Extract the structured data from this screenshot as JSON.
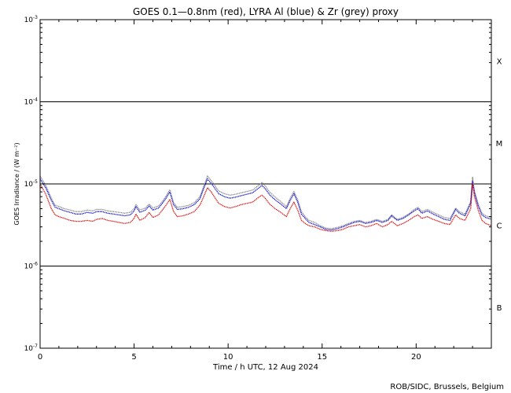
{
  "chart_data": {
    "type": "line",
    "title": "GOES 0.1—0.8nm (red), LYRA Al (blue) & Zr (grey) proxy",
    "xlabel": "Time / h UTC, 12 Aug 2024",
    "ylabel": "GOES Irradiance / (W m⁻²)",
    "credit": "ROB/SIDC, Brussels, Belgium",
    "xlim": [
      0,
      24
    ],
    "ylim": [
      1e-07,
      0.001
    ],
    "yscale": "log",
    "x_ticks": [
      0,
      5,
      10,
      15,
      20
    ],
    "x_tick_labels": [
      "0",
      "5",
      "10",
      "15",
      "20"
    ],
    "y_ticks": [
      {
        "value": 0.001,
        "base": "10",
        "exp": "-3"
      },
      {
        "value": 0.0001,
        "base": "10",
        "exp": "-4"
      },
      {
        "value": 1e-05,
        "base": "10",
        "exp": "-5"
      },
      {
        "value": 1e-06,
        "base": "10",
        "exp": "-6"
      },
      {
        "value": 1e-07,
        "base": "10",
        "exp": "-7"
      }
    ],
    "reference_lines": [
      0.0001,
      1e-05,
      1e-06
    ],
    "flare_classes": [
      {
        "label": "X",
        "value": 0.000316
      },
      {
        "label": "M",
        "value": 3.16e-05
      },
      {
        "label": "C",
        "value": 3.16e-06
      },
      {
        "label": "B",
        "value": 3.16e-07
      }
    ],
    "x": [
      0.0,
      0.3,
      0.6,
      0.8,
      1.0,
      1.3,
      1.6,
      1.9,
      2.2,
      2.5,
      2.8,
      3.0,
      3.3,
      3.6,
      3.9,
      4.2,
      4.5,
      4.8,
      5.0,
      5.1,
      5.3,
      5.6,
      5.8,
      6.0,
      6.3,
      6.5,
      6.7,
      6.9,
      7.1,
      7.3,
      7.6,
      7.9,
      8.2,
      8.5,
      8.7,
      8.9,
      9.1,
      9.3,
      9.5,
      9.8,
      10.1,
      10.4,
      10.7,
      11.0,
      11.3,
      11.6,
      11.8,
      12.0,
      12.2,
      12.5,
      12.8,
      13.1,
      13.3,
      13.5,
      13.7,
      13.9,
      14.1,
      14.3,
      14.6,
      14.9,
      15.2,
      15.5,
      15.8,
      16.1,
      16.4,
      16.7,
      17.0,
      17.3,
      17.6,
      17.9,
      18.2,
      18.5,
      18.7,
      19.0,
      19.3,
      19.6,
      19.9,
      20.1,
      20.3,
      20.6,
      20.9,
      21.2,
      21.5,
      21.8,
      22.1,
      22.3,
      22.6,
      22.9,
      23.0,
      23.1,
      23.3,
      23.5,
      23.7,
      24.0
    ],
    "series": [
      {
        "name": "GOES 0.1—0.8nm",
        "color": "#d60000",
        "values": [
          1e-05,
          7.5e-06,
          5e-06,
          4.2e-06,
          4e-06,
          3.8e-06,
          3.6e-06,
          3.5e-06,
          3.5e-06,
          3.6e-06,
          3.5e-06,
          3.7e-06,
          3.8e-06,
          3.6e-06,
          3.5e-06,
          3.4e-06,
          3.3e-06,
          3.4e-06,
          3.8e-06,
          4.3e-06,
          3.6e-06,
          3.9e-06,
          4.5e-06,
          3.9e-06,
          4.2e-06,
          4.8e-06,
          5.5e-06,
          6.5e-06,
          4.6e-06,
          4e-06,
          4.1e-06,
          4.3e-06,
          4.6e-06,
          5.5e-06,
          7e-06,
          9e-06,
          8e-06,
          6.8e-06,
          5.8e-06,
          5.3e-06,
          5.1e-06,
          5.3e-06,
          5.6e-06,
          5.8e-06,
          6e-06,
          6.8e-06,
          7.3e-06,
          6.6e-06,
          5.7e-06,
          5e-06,
          4.5e-06,
          4e-06,
          5e-06,
          6e-06,
          4.8e-06,
          3.6e-06,
          3.3e-06,
          3.1e-06,
          3e-06,
          2.8e-06,
          2.7e-06,
          2.65e-06,
          2.7e-06,
          2.8e-06,
          3e-06,
          3.1e-06,
          3.2e-06,
          3e-06,
          3.1e-06,
          3.3e-06,
          3e-06,
          3.2e-06,
          3.5e-06,
          3.1e-06,
          3.3e-06,
          3.6e-06,
          4e-06,
          4.2e-06,
          3.8e-06,
          4e-06,
          3.7e-06,
          3.5e-06,
          3.3e-06,
          3.2e-06,
          4.2e-06,
          3.8e-06,
          3.6e-06,
          5e-06,
          1e-05,
          7e-06,
          4.8e-06,
          3.6e-06,
          3.3e-06,
          3.1e-06
        ]
      },
      {
        "name": "LYRA Al",
        "color": "#0000cc",
        "values": [
          1.15e-05,
          9e-06,
          6.3e-06,
          5.2e-06,
          5e-06,
          4.7e-06,
          4.5e-06,
          4.3e-06,
          4.3e-06,
          4.5e-06,
          4.4e-06,
          4.6e-06,
          4.6e-06,
          4.4e-06,
          4.3e-06,
          4.2e-06,
          4.1e-06,
          4.2e-06,
          4.7e-06,
          5.3e-06,
          4.5e-06,
          4.8e-06,
          5.4e-06,
          4.8e-06,
          5.1e-06,
          5.8e-06,
          6.7e-06,
          8e-06,
          5.6e-06,
          4.9e-06,
          5e-06,
          5.2e-06,
          5.6e-06,
          6.6e-06,
          8.8e-06,
          1.15e-05,
          1.02e-05,
          8.8e-06,
          7.6e-06,
          7e-06,
          6.7e-06,
          6.9e-06,
          7.2e-06,
          7.5e-06,
          7.8e-06,
          8.8e-06,
          9.6e-06,
          8.6e-06,
          7.4e-06,
          6.4e-06,
          5.7e-06,
          5e-06,
          6.3e-06,
          7.6e-06,
          6e-06,
          4.3e-06,
          3.8e-06,
          3.4e-06,
          3.2e-06,
          3e-06,
          2.8e-06,
          2.75e-06,
          2.85e-06,
          3e-06,
          3.2e-06,
          3.4e-06,
          3.5e-06,
          3.3e-06,
          3.4e-06,
          3.6e-06,
          3.4e-06,
          3.6e-06,
          4.1e-06,
          3.6e-06,
          3.8e-06,
          4.2e-06,
          4.7e-06,
          5e-06,
          4.4e-06,
          4.7e-06,
          4.3e-06,
          4e-06,
          3.7e-06,
          3.6e-06,
          4.9e-06,
          4.4e-06,
          4.1e-06,
          5.8e-06,
          1.1e-05,
          7.8e-06,
          5.4e-06,
          4.2e-06,
          3.9e-06,
          3.7e-06
        ]
      },
      {
        "name": "LYRA Zr",
        "color": "#808080",
        "values": [
          1.25e-05,
          9.6e-06,
          6.7e-06,
          5.5e-06,
          5.3e-06,
          5e-06,
          4.8e-06,
          4.6e-06,
          4.6e-06,
          4.8e-06,
          4.7e-06,
          4.9e-06,
          4.9e-06,
          4.7e-06,
          4.6e-06,
          4.5e-06,
          4.4e-06,
          4.5e-06,
          5e-06,
          5.6e-06,
          4.8e-06,
          5.1e-06,
          5.7e-06,
          5.1e-06,
          5.4e-06,
          6.1e-06,
          7.1e-06,
          8.5e-06,
          5.9e-06,
          5.2e-06,
          5.3e-06,
          5.5e-06,
          5.9e-06,
          7e-06,
          9.3e-06,
          1.25e-05,
          1.1e-05,
          9.5e-06,
          8.2e-06,
          7.6e-06,
          7.3e-06,
          7.5e-06,
          7.8e-06,
          8.1e-06,
          8.4e-06,
          9.5e-06,
          1.04e-05,
          9.3e-06,
          8e-06,
          6.9e-06,
          6.1e-06,
          5.3e-06,
          6.7e-06,
          8.1e-06,
          6.4e-06,
          4.6e-06,
          4e-06,
          3.6e-06,
          3.4e-06,
          3.1e-06,
          2.9e-06,
          2.85e-06,
          2.95e-06,
          3.1e-06,
          3.3e-06,
          3.5e-06,
          3.6e-06,
          3.4e-06,
          3.5e-06,
          3.7e-06,
          3.5e-06,
          3.7e-06,
          4.2e-06,
          3.7e-06,
          3.9e-06,
          4.3e-06,
          4.9e-06,
          5.2e-06,
          4.6e-06,
          4.9e-06,
          4.5e-06,
          4.2e-06,
          3.9e-06,
          3.8e-06,
          5.1e-06,
          4.6e-06,
          4.3e-06,
          6.1e-06,
          1.2e-05,
          8.2e-06,
          5.7e-06,
          4.4e-06,
          4.1e-06,
          3.9e-06
        ]
      }
    ]
  }
}
